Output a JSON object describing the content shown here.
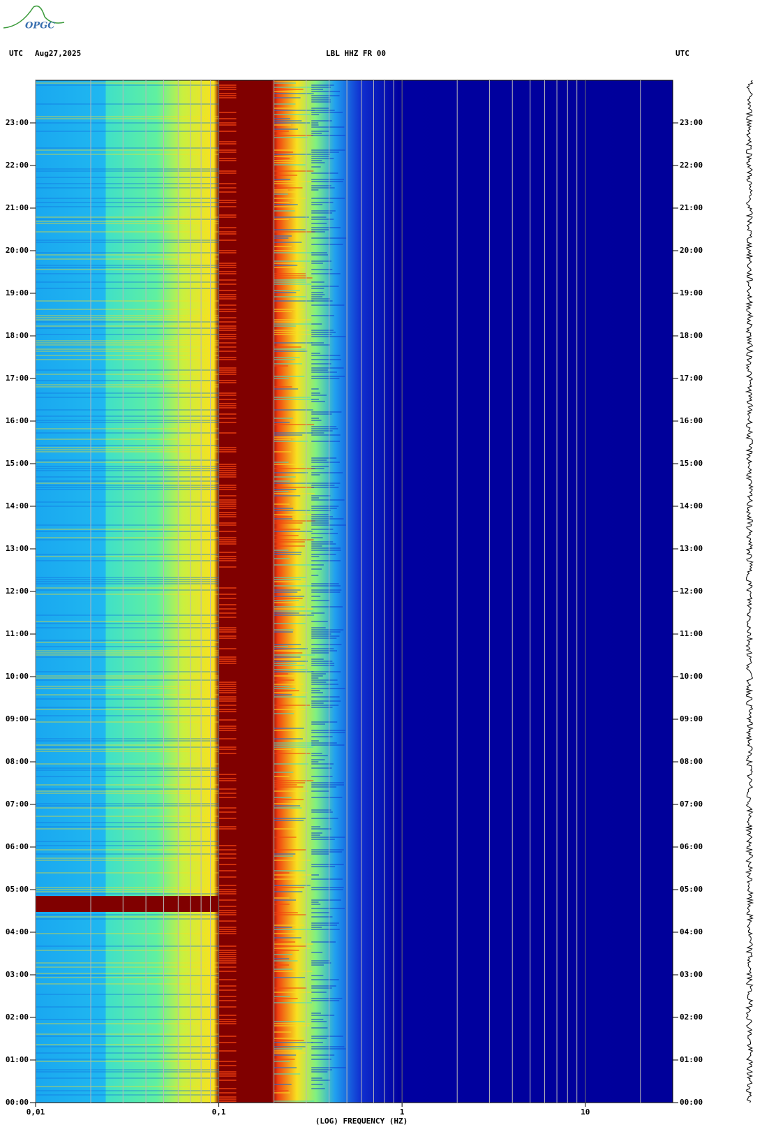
{
  "chart_data": {
    "type": "spectrogram",
    "logo": "OPGC",
    "left_header": "UTC",
    "date": "Aug27,2025",
    "title": "LBL HHZ FR 00",
    "right_header": "UTC",
    "xlabel": "(LOG) FREQUENCY (HZ)",
    "xscale": "log",
    "xlim": [
      0.01,
      30
    ],
    "xticks": [
      {
        "value": 0.01,
        "label": "0,01"
      },
      {
        "value": 0.1,
        "label": "0,1"
      },
      1,
      10
    ],
    "xminorticks": [
      0.02,
      0.03,
      0.04,
      0.05,
      0.06,
      0.07,
      0.08,
      0.09,
      0.2,
      0.3,
      0.4,
      0.5,
      0.6,
      0.7,
      0.8,
      0.9,
      2,
      3,
      4,
      5,
      6,
      7,
      8,
      9,
      20
    ],
    "ylim": [
      0,
      24
    ],
    "yticks": [
      {
        "value": 0,
        "label": "00:00"
      },
      {
        "value": 1,
        "label": "01:00"
      },
      {
        "value": 2,
        "label": "02:00"
      },
      {
        "value": 3,
        "label": "03:00"
      },
      {
        "value": 4,
        "label": "04:00"
      },
      {
        "value": 5,
        "label": "05:00"
      },
      {
        "value": 6,
        "label": "06:00"
      },
      {
        "value": 7,
        "label": "07:00"
      },
      {
        "value": 8,
        "label": "08:00"
      },
      {
        "value": 9,
        "label": "09:00"
      },
      {
        "value": 10,
        "label": "10:00"
      },
      {
        "value": 11,
        "label": "11:00"
      },
      {
        "value": 12,
        "label": "12:00"
      },
      {
        "value": 13,
        "label": "13:00"
      },
      {
        "value": 14,
        "label": "14:00"
      },
      {
        "value": 15,
        "label": "15:00"
      },
      {
        "value": 16,
        "label": "16:00"
      },
      {
        "value": 17,
        "label": "17:00"
      },
      {
        "value": 18,
        "label": "18:00"
      },
      {
        "value": 19,
        "label": "19:00"
      },
      {
        "value": 20,
        "label": "20:00"
      },
      {
        "value": 21,
        "label": "21:00"
      },
      {
        "value": 22,
        "label": "22:00"
      },
      {
        "value": 23,
        "label": "23:00"
      }
    ]
  }
}
